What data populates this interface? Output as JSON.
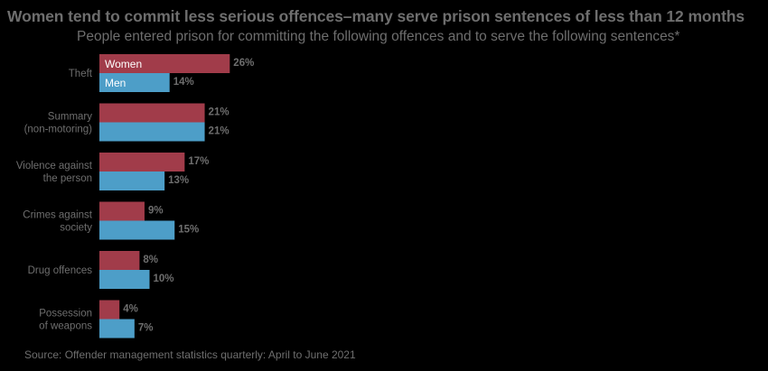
{
  "title": "Women tend to commit less serious offences–many serve prison sentences of less than 12 months",
  "subtitle": "People entered prison for committing the following offences and to serve the following sentences*",
  "source": "Source: Offender management statistics quarterly: April to June 2021",
  "chart_data": {
    "type": "bar",
    "orientation": "horizontal",
    "categories": [
      [
        "Theft"
      ],
      [
        "Summary",
        "(non-motoring)"
      ],
      [
        "Violence against",
        "the person"
      ],
      [
        "Crimes against",
        "society"
      ],
      [
        "Drug offences"
      ],
      [
        "Possession",
        "of weapons"
      ]
    ],
    "series": [
      {
        "name": "Women",
        "values": [
          26,
          21,
          17,
          9,
          8,
          4
        ],
        "color": "#a13c4a"
      },
      {
        "name": "Men",
        "values": [
          14,
          21,
          13,
          15,
          10,
          7
        ],
        "color": "#4d9ec8"
      }
    ],
    "value_suffix": "%",
    "legend": "inside-first-category",
    "grid": false
  }
}
